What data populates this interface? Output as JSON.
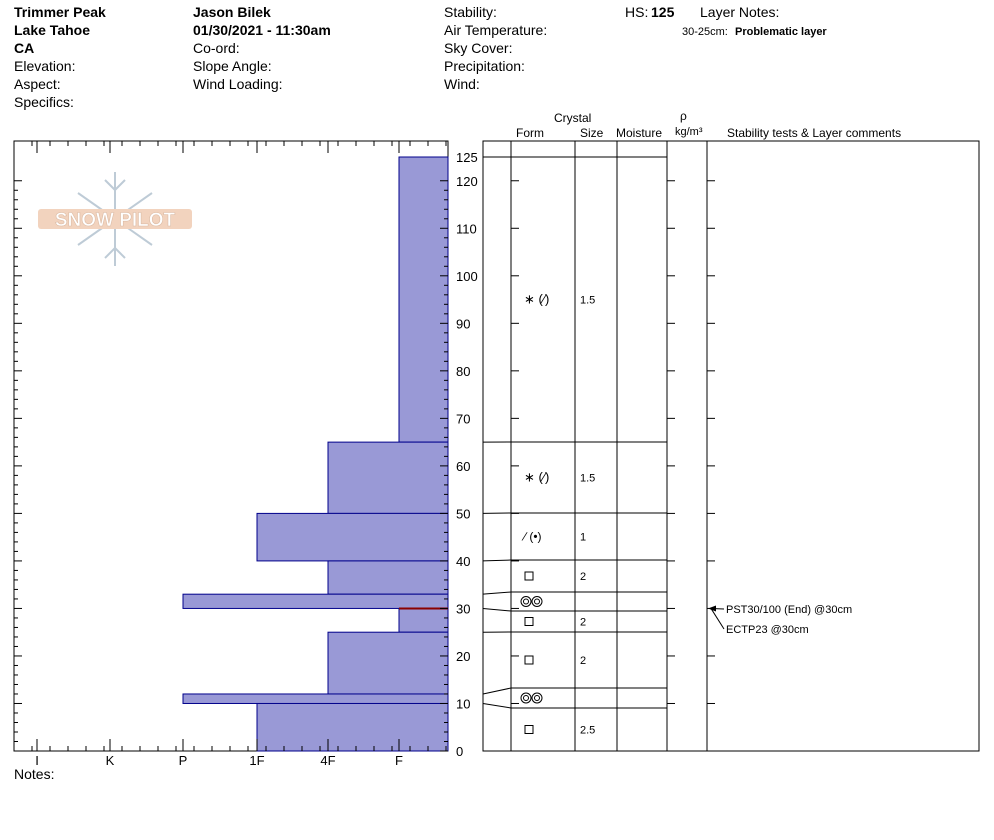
{
  "header": {
    "location": "Trimmer Peak",
    "range": "Lake Tahoe",
    "state": "CA",
    "elevation_label": "Elevation:",
    "aspect_label": "Aspect:",
    "specifics_label": "Specifics:",
    "observer": "Jason Bilek",
    "datetime": "01/30/2021 - 11:30am",
    "coord_label": "Co-ord:",
    "slope_label": "Slope Angle:",
    "wind_loading_label": "Wind Loading:",
    "stability_label": "Stability:",
    "air_temp_label": "Air Temperature:",
    "sky_label": "Sky Cover:",
    "precip_label": "Precipitation:",
    "wind_label": "Wind:",
    "hs_label": "HS:",
    "hs_value": "125",
    "layer_notes_label": "Layer Notes:",
    "layer_note_range": "30-25cm:",
    "layer_note_text": "Problematic layer"
  },
  "logo_text": "SNOW PILOT",
  "notes_label": "Notes:",
  "columns": {
    "crystal": "Crystal",
    "form": "Form",
    "size": "Size",
    "moisture": "Moisture",
    "rho": "ρ",
    "density_unit": "kg/m³",
    "stability": "Stability tests & Layer comments"
  },
  "colors": {
    "hardness_fill": "#9999d6",
    "hardness_stroke": "#00008b",
    "problem_line": "#8b0000",
    "grid": "#000000"
  },
  "chart_data": {
    "type": "bar",
    "orientation": "horizontal",
    "title": "",
    "x_categories": [
      "I",
      "K",
      "P",
      "1F",
      "4F",
      "F"
    ],
    "ylim": [
      0,
      125
    ],
    "y_ticks": [
      0,
      10,
      20,
      30,
      40,
      50,
      60,
      70,
      80,
      90,
      100,
      110,
      120,
      125
    ],
    "layers": [
      {
        "top": 125,
        "bottom": 65,
        "hardness": "F",
        "hardness_value": 1,
        "form": "snowflake-slash",
        "size": "1.5"
      },
      {
        "top": 65,
        "bottom": 50,
        "hardness": "4F",
        "hardness_value": 2,
        "form": "snowflake-slash",
        "size": "1.5"
      },
      {
        "top": 50,
        "bottom": 40,
        "hardness": "1F",
        "hardness_value": 3,
        "form": "slash-dot",
        "size": "1"
      },
      {
        "top": 40,
        "bottom": 33,
        "hardness": "4F",
        "hardness_value": 2,
        "form": "square",
        "size": "2"
      },
      {
        "top": 33,
        "bottom": 30,
        "hardness": "P",
        "hardness_value": 4,
        "form": "ice-circles",
        "size": ""
      },
      {
        "top": 30,
        "bottom": 25,
        "hardness": "F",
        "hardness_value": 1,
        "form": "square",
        "size": "2"
      },
      {
        "top": 25,
        "bottom": 12,
        "hardness": "4F",
        "hardness_value": 2,
        "form": "square",
        "size": "2"
      },
      {
        "top": 12,
        "bottom": 10,
        "hardness": "P",
        "hardness_value": 4,
        "form": "ice-circles",
        "size": ""
      },
      {
        "top": 10,
        "bottom": 0,
        "hardness": "1F",
        "hardness_value": 3,
        "form": "square",
        "size": "2.5"
      }
    ],
    "problem_layer_depth": 30,
    "stability_tests": [
      {
        "text": "PST30/100 (End) @30cm",
        "depth": 30
      },
      {
        "text": "ECTP23 @30cm",
        "depth": 30
      }
    ]
  }
}
